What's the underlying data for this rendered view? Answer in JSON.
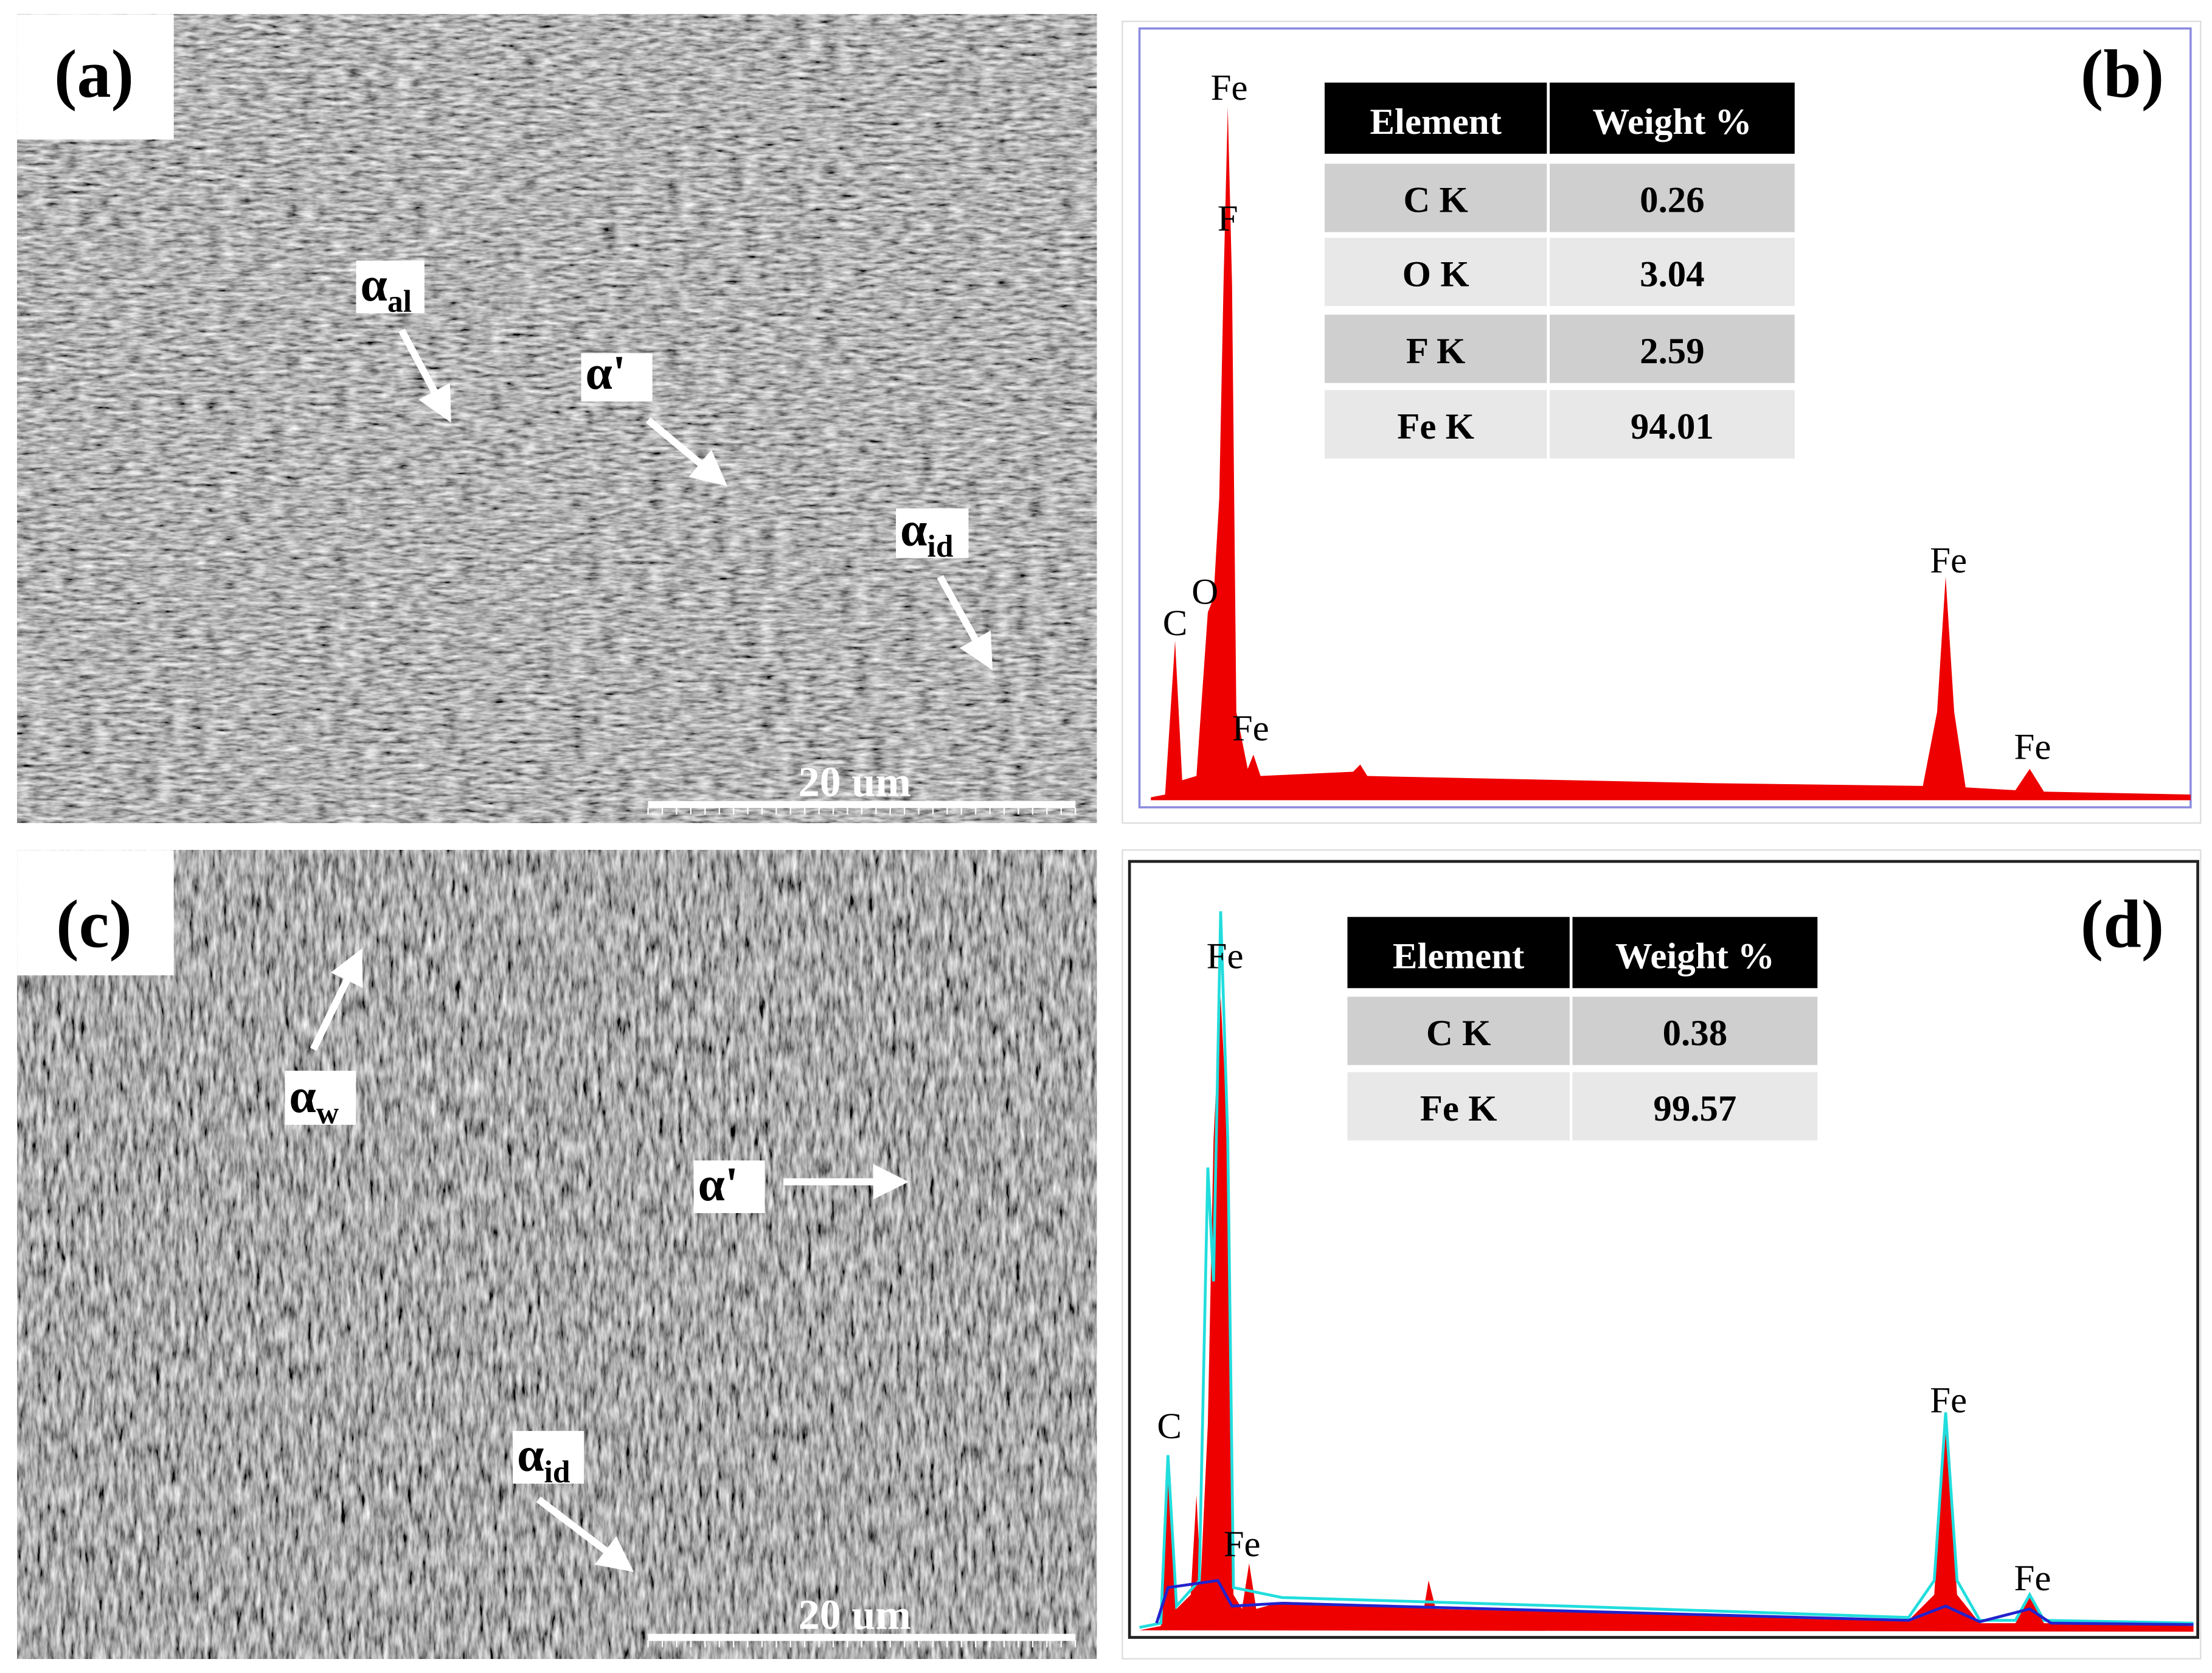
{
  "panels": [
    {
      "label": "(a)",
      "annotations": [
        {
          "symbol": "α",
          "subscript": "al"
        },
        {
          "symbol": "α'"
        },
        {
          "symbol": "α",
          "subscript": "id"
        }
      ],
      "scale_bar": "20 um"
    },
    {
      "label": "(b)",
      "peak_labels": [
        "Fe",
        "F",
        "C",
        "O",
        "Fe",
        "Fe",
        "Fe"
      ],
      "table": {
        "header": [
          "Element",
          "Weight %"
        ],
        "rows": [
          [
            "C K",
            "0.26"
          ],
          [
            "O K",
            "3.04"
          ],
          [
            "F K",
            "2.59"
          ],
          [
            "Fe K",
            "94.01"
          ]
        ]
      }
    },
    {
      "label": "(c)",
      "annotations": [
        {
          "symbol": "α",
          "subscript": "w"
        },
        {
          "symbol": "α'"
        },
        {
          "symbol": "α",
          "subscript": "id"
        }
      ],
      "scale_bar": "20 um"
    },
    {
      "label": "(d)",
      "peak_labels": [
        "Fe",
        "C",
        "Fe",
        "Fe",
        "Fe"
      ],
      "table": {
        "header": [
          "Element",
          "Weight %"
        ],
        "rows": [
          [
            "C K",
            "0.38"
          ],
          [
            "Fe K",
            "99.57"
          ]
        ]
      }
    }
  ]
}
